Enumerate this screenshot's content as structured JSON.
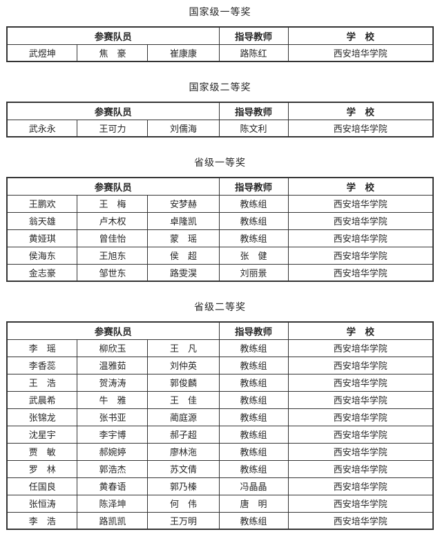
{
  "headers": {
    "members": "参赛队员",
    "teacher": "指导教师",
    "school": "学　校"
  },
  "school_name": "西安培华学院",
  "colors": {
    "border": "#333333",
    "text": "#262626",
    "background": "#ffffff"
  },
  "sections": [
    {
      "title": "国家级一等奖",
      "rows": [
        [
          "武煜坤",
          "焦　豪",
          "崔康康",
          "路陈红",
          "西安培华学院"
        ]
      ]
    },
    {
      "title": "国家级二等奖",
      "rows": [
        [
          "武永永",
          "王可力",
          "刘儒海",
          "陈文利",
          "西安培华学院"
        ]
      ]
    },
    {
      "title": "省级一等奖",
      "rows": [
        [
          "王鹏欢",
          "王　梅",
          "安梦赫",
          "教练组",
          "西安培华学院"
        ],
        [
          "翁天雄",
          "卢木权",
          "卓隆凯",
          "教练组",
          "西安培华学院"
        ],
        [
          "黄娅琪",
          "曾佳怡",
          "蒙　瑶",
          "教练组",
          "西安培华学院"
        ],
        [
          "侯海东",
          "王旭东",
          "侯　超",
          "张　健",
          "西安培华学院"
        ],
        [
          "金志豪",
          "邹世东",
          "路雯淏",
          "刘丽景",
          "西安培华学院"
        ]
      ]
    },
    {
      "title": "省级二等奖",
      "rows": [
        [
          "李　瑶",
          "柳欣玉",
          "王　凡",
          "教练组",
          "西安培华学院"
        ],
        [
          "李香蕊",
          "温雅茹",
          "刘仲英",
          "教练组",
          "西安培华学院"
        ],
        [
          "王　浩",
          "贺涛涛",
          "郭俊麟",
          "教练组",
          "西安培华学院"
        ],
        [
          "武晨希",
          "牛　雅",
          "王　佳",
          "教练组",
          "西安培华学院"
        ],
        [
          "张锦龙",
          "张书亚",
          "蔺庭源",
          "教练组",
          "西安培华学院"
        ],
        [
          "沈星宇",
          "李宇博",
          "郝子超",
          "教练组",
          "西安培华学院"
        ],
        [
          "贾　敏",
          "郝婉婷",
          "廖林沲",
          "教练组",
          "西安培华学院"
        ],
        [
          "罗　林",
          "郭浩杰",
          "苏文倩",
          "教练组",
          "西安培华学院"
        ],
        [
          "任国良",
          "黄春语",
          "郭乃榛",
          "冯晶晶",
          "西安培华学院"
        ],
        [
          "张恒涛",
          "陈泽坤",
          "何　伟",
          "唐　明",
          "西安培华学院"
        ],
        [
          "李　浩",
          "路凯凯",
          "王万明",
          "教练组",
          "西安培华学院"
        ]
      ]
    }
  ]
}
